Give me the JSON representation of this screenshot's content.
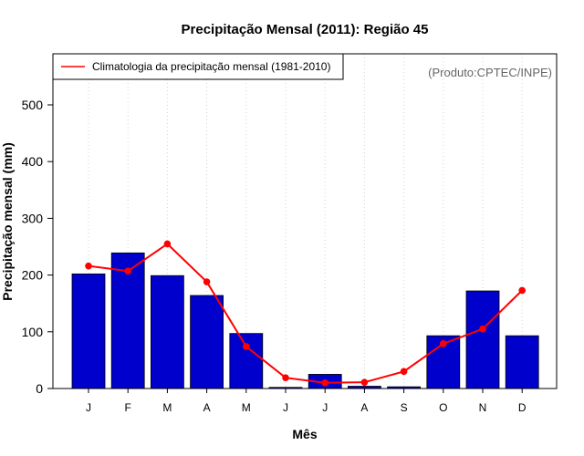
{
  "chart_data": {
    "type": "bar",
    "title": "Precipitação Mensal (2011): Região 45",
    "xlabel": "Mês",
    "ylabel": "Precipitação mensal (mm)",
    "ylim": [
      0,
      590
    ],
    "yticks": [
      0,
      100,
      200,
      300,
      400,
      500
    ],
    "categories": [
      "J",
      "F",
      "M",
      "A",
      "M",
      "J",
      "J",
      "A",
      "S",
      "O",
      "N",
      "D"
    ],
    "series": [
      {
        "name": "Precipitação mensal (2011)",
        "type": "bar",
        "color": "#0000CD",
        "values": [
          202,
          239,
          199,
          164,
          97,
          2,
          25,
          4,
          3,
          93,
          172,
          93
        ]
      },
      {
        "name": "Climatologia da precipitação mensal (1981-2010)",
        "type": "line",
        "color": "#FF0000",
        "values": [
          216,
          207,
          255,
          188,
          74,
          19,
          10,
          11,
          30,
          79,
          105,
          173
        ]
      }
    ],
    "legend": {
      "position": "top-left",
      "entries": [
        "Climatologia da precipitação mensal (1981-2010)"
      ]
    },
    "credit": "(Produto:CPTEC/INPE)",
    "grid": "vertical-dotted"
  }
}
